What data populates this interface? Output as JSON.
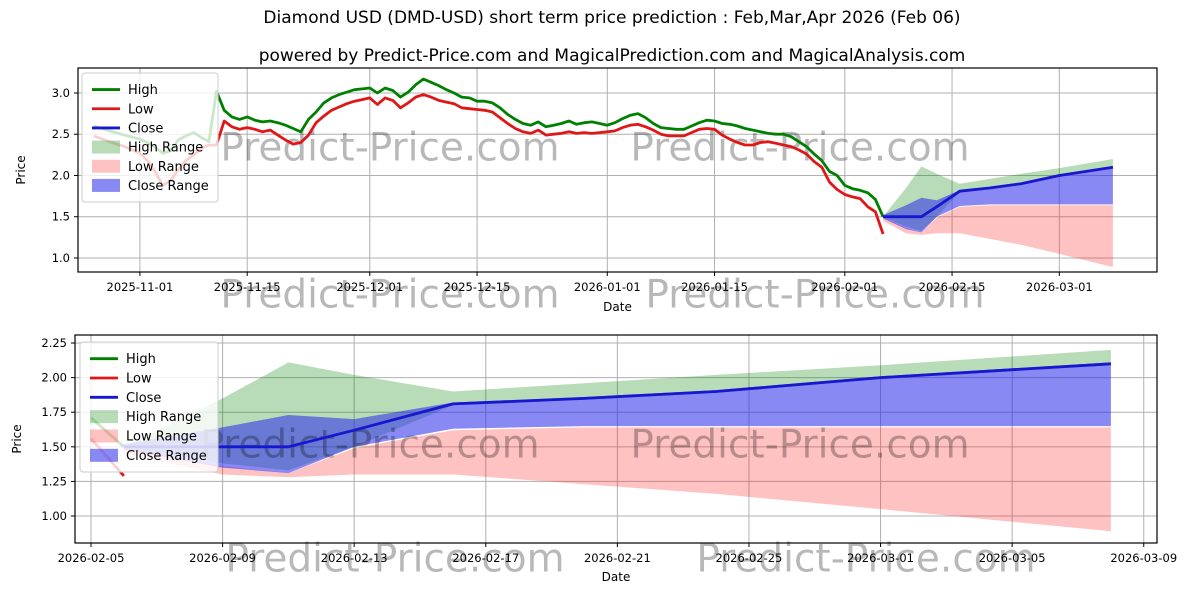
{
  "title": "Diamond USD (DMD-USD) short term price prediction : Feb,Mar,Apr 2026 (Feb 06)",
  "subtitle": "powered by Predict-Price.com and MagicalPrediction.com and MagicalAnalysis.com",
  "watermark": {
    "text": "Predict-Price.com",
    "color": "#9a9a9a",
    "opacity": 0.28
  },
  "colors": {
    "high_line": "#008000",
    "low_line": "#e01717",
    "close_line": "#1717cf",
    "high_band": "rgba(0,128,0,0.28)",
    "low_band": "rgba(255,30,30,0.27)",
    "close_band": "rgba(40,40,235,0.55)",
    "grid": "#b0b0b0",
    "spine": "#000000"
  },
  "legend": {
    "items": [
      {
        "label": "High",
        "swatch": "line",
        "color": "#008000"
      },
      {
        "label": "Low",
        "swatch": "line",
        "color": "#e01717"
      },
      {
        "label": "Close",
        "swatch": "line",
        "color": "#1717cf"
      },
      {
        "label": "High Range",
        "swatch": "patch",
        "color": "rgba(0,128,0,0.28)"
      },
      {
        "label": "Low Range",
        "swatch": "patch",
        "color": "rgba(255,30,30,0.27)"
      },
      {
        "label": "Close Range",
        "swatch": "patch",
        "color": "rgba(40,40,235,0.55)"
      }
    ]
  },
  "chart_data": [
    {
      "type": "line",
      "name": "history-and-prediction",
      "xlabel": "Date",
      "ylabel": "Price",
      "grid": true,
      "legend_position": "upper left",
      "x_domain": [
        "2025-10-23T22:00:00Z",
        "2026-03-13T18:00:00Z"
      ],
      "y_domain": [
        0.83,
        3.303
      ],
      "yticks": [
        {
          "v": 1.0,
          "label": "1.0"
        },
        {
          "v": 1.5,
          "label": "1.5"
        },
        {
          "v": 2.0,
          "label": "2.0"
        },
        {
          "v": 2.5,
          "label": "2.5"
        },
        {
          "v": 3.0,
          "label": "3.0"
        }
      ],
      "xticks": [
        {
          "d": "2025-11-01",
          "label": "2025-11-01"
        },
        {
          "d": "2025-11-15",
          "label": "2025-11-15"
        },
        {
          "d": "2025-12-01",
          "label": "2025-12-01"
        },
        {
          "d": "2025-12-15",
          "label": "2025-12-15"
        },
        {
          "d": "2026-01-01",
          "label": "2026-01-01"
        },
        {
          "d": "2026-01-15",
          "label": "2026-01-15"
        },
        {
          "d": "2026-02-01",
          "label": "2026-02-01"
        },
        {
          "d": "2026-02-15",
          "label": "2026-02-15"
        },
        {
          "d": "2026-03-01",
          "label": "2026-03-01"
        }
      ],
      "dates": [
        "2025-10-26",
        "2025-10-28",
        "2025-10-30",
        "2025-11-01",
        "2025-11-02",
        "2025-11-03",
        "2025-11-04",
        "2025-11-05",
        "2025-11-06",
        "2025-11-07",
        "2025-11-08",
        "2025-11-09",
        "2025-11-10",
        "2025-11-11",
        "2025-11-12",
        "2025-11-13",
        "2025-11-14",
        "2025-11-15",
        "2025-11-16",
        "2025-11-17",
        "2025-11-18",
        "2025-11-19",
        "2025-11-20",
        "2025-11-21",
        "2025-11-22",
        "2025-11-23",
        "2025-11-24",
        "2025-11-25",
        "2025-11-26",
        "2025-11-27",
        "2025-11-28",
        "2025-11-29",
        "2025-11-30",
        "2025-12-01",
        "2025-12-02",
        "2025-12-03",
        "2025-12-04",
        "2025-12-05",
        "2025-12-06",
        "2025-12-07",
        "2025-12-08",
        "2025-12-09",
        "2025-12-10",
        "2025-12-11",
        "2025-12-12",
        "2025-12-13",
        "2025-12-14",
        "2025-12-15",
        "2025-12-16",
        "2025-12-17",
        "2025-12-18",
        "2025-12-19",
        "2025-12-20",
        "2025-12-21",
        "2025-12-22",
        "2025-12-23",
        "2025-12-24",
        "2025-12-25",
        "2025-12-26",
        "2025-12-27",
        "2025-12-28",
        "2025-12-29",
        "2025-12-30",
        "2025-12-31",
        "2026-01-01",
        "2026-01-02",
        "2026-01-03",
        "2026-01-04",
        "2026-01-05",
        "2026-01-06",
        "2026-01-07",
        "2026-01-08",
        "2026-01-09",
        "2026-01-10",
        "2026-01-11",
        "2026-01-12",
        "2026-01-13",
        "2026-01-14",
        "2026-01-15",
        "2026-01-16",
        "2026-01-17",
        "2026-01-18",
        "2026-01-19",
        "2026-01-20",
        "2026-01-21",
        "2026-01-22",
        "2026-01-23",
        "2026-01-24",
        "2026-01-25",
        "2026-01-26",
        "2026-01-27",
        "2026-01-28",
        "2026-01-29",
        "2026-01-30",
        "2026-01-31",
        "2026-02-01",
        "2026-02-02",
        "2026-02-03",
        "2026-02-04",
        "2026-02-05",
        "2026-02-06"
      ],
      "series": [
        {
          "name": "High",
          "color": "#008000",
          "width": 2.8,
          "y": [
            2.6,
            2.54,
            2.49,
            2.44,
            2.4,
            2.34,
            2.27,
            2.3,
            2.43,
            2.48,
            2.52,
            2.46,
            2.41,
            3.02,
            2.79,
            2.71,
            2.68,
            2.71,
            2.67,
            2.65,
            2.66,
            2.64,
            2.61,
            2.57,
            2.53,
            2.68,
            2.77,
            2.88,
            2.94,
            2.98,
            3.01,
            3.04,
            3.05,
            3.06,
            3.0,
            3.06,
            3.03,
            2.95,
            3.01,
            3.1,
            3.17,
            3.13,
            3.09,
            3.04,
            3.0,
            2.95,
            2.94,
            2.9,
            2.9,
            2.88,
            2.82,
            2.74,
            2.68,
            2.63,
            2.61,
            2.65,
            2.59,
            2.61,
            2.63,
            2.66,
            2.62,
            2.64,
            2.65,
            2.63,
            2.61,
            2.64,
            2.69,
            2.73,
            2.75,
            2.7,
            2.63,
            2.58,
            2.57,
            2.56,
            2.56,
            2.6,
            2.64,
            2.67,
            2.66,
            2.63,
            2.62,
            2.6,
            2.57,
            2.55,
            2.53,
            2.51,
            2.5,
            2.5,
            2.47,
            2.41,
            2.35,
            2.26,
            2.18,
            2.05,
            2.0,
            1.88,
            1.84,
            1.82,
            1.79,
            1.71,
            1.5
          ]
        },
        {
          "name": "Low",
          "color": "#e01717",
          "width": 2.8,
          "y": [
            2.48,
            2.41,
            2.35,
            2.27,
            2.18,
            2.04,
            1.88,
            1.94,
            2.07,
            2.18,
            2.25,
            2.33,
            2.37,
            2.37,
            2.66,
            2.59,
            2.56,
            2.58,
            2.56,
            2.53,
            2.55,
            2.49,
            2.43,
            2.38,
            2.4,
            2.49,
            2.64,
            2.72,
            2.79,
            2.83,
            2.87,
            2.9,
            2.92,
            2.94,
            2.86,
            2.94,
            2.91,
            2.82,
            2.88,
            2.95,
            2.98,
            2.95,
            2.91,
            2.89,
            2.87,
            2.82,
            2.81,
            2.8,
            2.79,
            2.77,
            2.7,
            2.63,
            2.57,
            2.53,
            2.51,
            2.55,
            2.49,
            2.5,
            2.51,
            2.53,
            2.51,
            2.52,
            2.51,
            2.52,
            2.53,
            2.54,
            2.58,
            2.61,
            2.62,
            2.59,
            2.55,
            2.5,
            2.48,
            2.48,
            2.48,
            2.52,
            2.56,
            2.57,
            2.56,
            2.49,
            2.44,
            2.4,
            2.37,
            2.37,
            2.4,
            2.41,
            2.39,
            2.37,
            2.35,
            2.31,
            2.26,
            2.17,
            2.1,
            1.92,
            1.83,
            1.77,
            1.74,
            1.72,
            1.62,
            1.56,
            1.29
          ]
        },
        {
          "name": "Close",
          "color": "#1717cf",
          "width": 2.8,
          "x": [
            "2026-02-06",
            "2026-02-09",
            "2026-02-11",
            "2026-02-13",
            "2026-02-16",
            "2026-02-20",
            "2026-02-24",
            "2026-03-01",
            "2026-03-08"
          ],
          "y": [
            1.5,
            1.5,
            1.5,
            1.62,
            1.81,
            1.85,
            1.9,
            2.0,
            2.1
          ]
        }
      ],
      "bands": [
        {
          "name": "High Range",
          "color": "rgba(0,128,0,0.28)",
          "x": [
            "2026-02-06",
            "2026-02-09",
            "2026-02-11",
            "2026-02-13",
            "2026-02-16",
            "2026-02-20",
            "2026-02-24",
            "2026-03-01",
            "2026-03-08"
          ],
          "lo": [
            1.5,
            1.38,
            1.33,
            1.5,
            1.8,
            1.84,
            1.89,
            1.99,
            2.09
          ],
          "hi": [
            1.5,
            1.85,
            2.11,
            2.02,
            1.9,
            1.96,
            2.02,
            2.09,
            2.2
          ]
        },
        {
          "name": "Low Range",
          "color": "rgba(255,30,30,0.27)",
          "x": [
            "2026-02-06",
            "2026-02-09",
            "2026-02-11",
            "2026-02-13",
            "2026-02-16",
            "2026-02-20",
            "2026-02-24",
            "2026-03-01",
            "2026-03-08"
          ],
          "lo": [
            1.45,
            1.3,
            1.28,
            1.3,
            1.3,
            1.23,
            1.16,
            1.05,
            0.89
          ],
          "hi": [
            1.5,
            1.36,
            1.31,
            1.49,
            1.62,
            1.64,
            1.64,
            1.64,
            1.64
          ]
        },
        {
          "name": "Close Range",
          "color": "rgba(40,40,235,0.55)",
          "x": [
            "2026-02-06",
            "2026-02-09",
            "2026-02-11",
            "2026-02-13",
            "2026-02-16",
            "2026-02-20",
            "2026-02-24",
            "2026-03-01",
            "2026-03-08"
          ],
          "lo": [
            1.48,
            1.35,
            1.31,
            1.5,
            1.63,
            1.65,
            1.65,
            1.65,
            1.65
          ],
          "hi": [
            1.52,
            1.64,
            1.73,
            1.7,
            1.82,
            1.86,
            1.91,
            2.01,
            2.11
          ]
        }
      ]
    },
    {
      "type": "line",
      "name": "prediction-zoom",
      "xlabel": "Date",
      "ylabel": "Price",
      "grid": true,
      "legend_position": "upper left",
      "x_domain": [
        "2026-02-04T12:20:00Z",
        "2026-03-09T09:40:00Z"
      ],
      "y_domain": [
        0.805,
        2.308
      ],
      "yticks": [
        {
          "v": 1.0,
          "label": "1.00"
        },
        {
          "v": 1.25,
          "label": "1.25"
        },
        {
          "v": 1.5,
          "label": "1.50"
        },
        {
          "v": 1.75,
          "label": "1.75"
        },
        {
          "v": 2.0,
          "label": "2.00"
        },
        {
          "v": 2.25,
          "label": "2.25"
        }
      ],
      "xticks": [
        {
          "d": "2026-02-05",
          "label": "2026-02-05"
        },
        {
          "d": "2026-02-09",
          "label": "2026-02-09"
        },
        {
          "d": "2026-02-13",
          "label": "2026-02-13"
        },
        {
          "d": "2026-02-17",
          "label": "2026-02-17"
        },
        {
          "d": "2026-02-21",
          "label": "2026-02-21"
        },
        {
          "d": "2026-02-25",
          "label": "2026-02-25"
        },
        {
          "d": "2026-03-01",
          "label": "2026-03-01"
        },
        {
          "d": "2026-03-05",
          "label": "2026-03-05"
        },
        {
          "d": "2026-03-09",
          "label": "2026-03-09"
        }
      ],
      "dates": [
        "2026-02-05",
        "2026-02-06"
      ],
      "series": [
        {
          "name": "High",
          "color": "#008000",
          "width": 2.8,
          "y": [
            1.71,
            1.5
          ]
        },
        {
          "name": "Low",
          "color": "#e01717",
          "width": 2.8,
          "y": [
            1.56,
            1.29
          ]
        },
        {
          "name": "Close",
          "color": "#1717cf",
          "width": 2.8,
          "x": [
            "2026-02-06",
            "2026-02-09",
            "2026-02-11",
            "2026-02-13",
            "2026-02-16",
            "2026-02-20",
            "2026-02-24",
            "2026-03-01",
            "2026-03-08"
          ],
          "y": [
            1.5,
            1.5,
            1.5,
            1.62,
            1.81,
            1.85,
            1.9,
            2.0,
            2.1
          ]
        }
      ],
      "bands": [
        {
          "name": "High Range",
          "color": "rgba(0,128,0,0.28)",
          "x": [
            "2026-02-06",
            "2026-02-09",
            "2026-02-11",
            "2026-02-13",
            "2026-02-16",
            "2026-02-20",
            "2026-02-24",
            "2026-03-01",
            "2026-03-08"
          ],
          "lo": [
            1.5,
            1.38,
            1.33,
            1.5,
            1.8,
            1.84,
            1.89,
            1.99,
            2.09
          ],
          "hi": [
            1.5,
            1.85,
            2.11,
            2.02,
            1.9,
            1.96,
            2.02,
            2.09,
            2.2
          ]
        },
        {
          "name": "Low Range",
          "color": "rgba(255,30,30,0.27)",
          "x": [
            "2026-02-06",
            "2026-02-09",
            "2026-02-11",
            "2026-02-13",
            "2026-02-16",
            "2026-02-20",
            "2026-02-24",
            "2026-03-01",
            "2026-03-08"
          ],
          "lo": [
            1.45,
            1.3,
            1.28,
            1.3,
            1.3,
            1.23,
            1.16,
            1.05,
            0.89
          ],
          "hi": [
            1.5,
            1.36,
            1.31,
            1.49,
            1.62,
            1.64,
            1.64,
            1.64,
            1.64
          ]
        },
        {
          "name": "Close Range",
          "color": "rgba(40,40,235,0.55)",
          "x": [
            "2026-02-06",
            "2026-02-09",
            "2026-02-11",
            "2026-02-13",
            "2026-02-16",
            "2026-02-20",
            "2026-02-24",
            "2026-03-01",
            "2026-03-08"
          ],
          "lo": [
            1.48,
            1.35,
            1.31,
            1.5,
            1.63,
            1.65,
            1.65,
            1.65,
            1.65
          ],
          "hi": [
            1.52,
            1.64,
            1.73,
            1.7,
            1.82,
            1.86,
            1.91,
            2.01,
            2.11
          ]
        }
      ]
    }
  ]
}
